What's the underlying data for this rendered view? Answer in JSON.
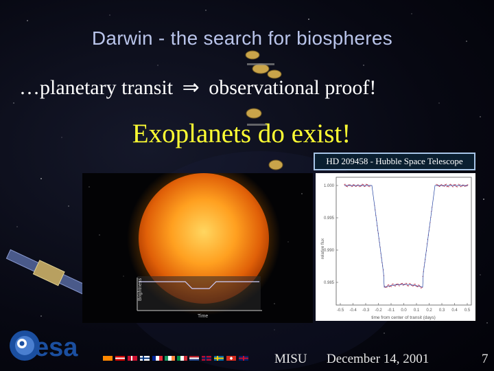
{
  "slide": {
    "title": "Darwin - the search for biospheres",
    "subtitle_left": "…planetary transit",
    "subtitle_arrow": "⇒",
    "subtitle_right": "observational proof!",
    "headline": "Exoplanets do exist!",
    "image_label": "HD 209458 - Hubble Space Telescope",
    "sun_axis_y": "Brightness",
    "sun_axis_x": "Time",
    "lightcurve": {
      "y_ticks": [
        "1.000",
        "0.995",
        "0.990",
        "0.985"
      ],
      "x_ticks": [
        "-0.5",
        "-0.4",
        "-0.3",
        "-0.2",
        "-0.1",
        "0.0",
        "0.1",
        "0.2",
        "0.3",
        "0.4",
        "0.5"
      ],
      "xlabel": "time from center of transit (days)",
      "ylabel": "relative flux"
    },
    "logo_text": "esa",
    "footer": {
      "org": "MISU",
      "date": "December 14, 2001",
      "page": "7"
    }
  },
  "colors": {
    "title": "#b9c4ea",
    "headline": "#ffff33",
    "text": "#ffffff",
    "esa_blue": "#1b4fa0"
  }
}
